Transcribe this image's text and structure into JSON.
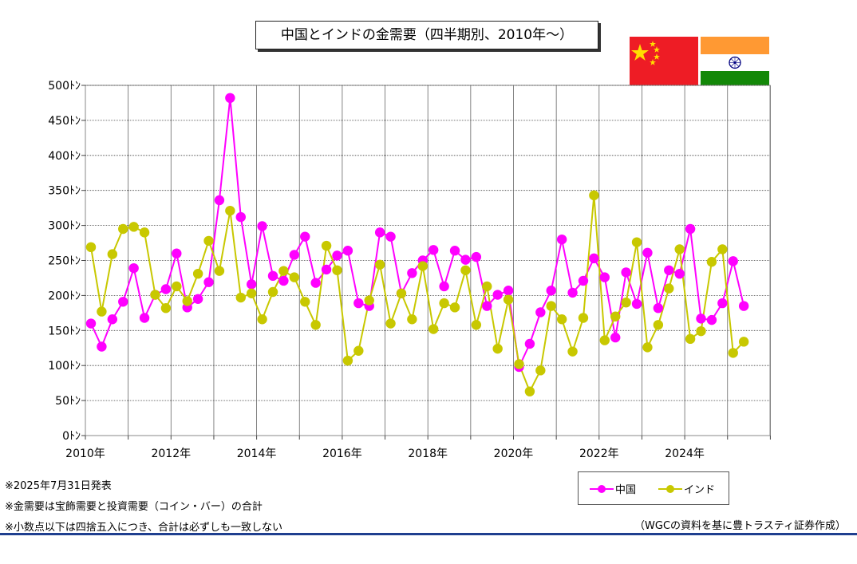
{
  "title": "中国とインドの金需要（四半期別、2010年〜）",
  "notes": [
    "※2025年7月31日発表",
    "※金需要は宝飾需要と投資需要（コイン・バー）の合計",
    "※小数点以下は四捨五入につき、合計は必ずしも一致しない"
  ],
  "source": "（WGCの資料を基に豊トラスティ証券作成）",
  "colors": {
    "china": "#ff00ff",
    "india": "#c8c800",
    "rule": "#1f3f8f"
  },
  "icons": {
    "china_flag": "china-flag-icon",
    "india_flag": "india-flag-icon"
  },
  "chart_data": {
    "type": "line",
    "ylim": [
      0,
      500
    ],
    "y_ticks": [
      "0ﾄﾝ",
      "50ﾄﾝ",
      "100ﾄﾝ",
      "150ﾄﾝ",
      "200ﾄﾝ",
      "250ﾄﾝ",
      "300ﾄﾝ",
      "350ﾄﾝ",
      "400ﾄﾝ",
      "450ﾄﾝ",
      "500ﾄﾝ"
    ],
    "x_ticks": [
      "2010年",
      "2012年",
      "2014年",
      "2016年",
      "2018年",
      "2020年",
      "2022年",
      "2024年"
    ],
    "x": [
      "2010Q1",
      "2010Q2",
      "2010Q3",
      "2010Q4",
      "2011Q1",
      "2011Q2",
      "2011Q3",
      "2011Q4",
      "2012Q1",
      "2012Q2",
      "2012Q3",
      "2012Q4",
      "2013Q1",
      "2013Q2",
      "2013Q3",
      "2013Q4",
      "2014Q1",
      "2014Q2",
      "2014Q3",
      "2014Q4",
      "2015Q1",
      "2015Q2",
      "2015Q3",
      "2015Q4",
      "2016Q1",
      "2016Q2",
      "2016Q3",
      "2016Q4",
      "2017Q1",
      "2017Q2",
      "2017Q3",
      "2017Q4",
      "2018Q1",
      "2018Q2",
      "2018Q3",
      "2018Q4",
      "2019Q1",
      "2019Q2",
      "2019Q3",
      "2019Q4",
      "2020Q1",
      "2020Q2",
      "2020Q3",
      "2020Q4",
      "2021Q1",
      "2021Q2",
      "2021Q3",
      "2021Q4",
      "2022Q1",
      "2022Q2",
      "2022Q3",
      "2022Q4",
      "2023Q1",
      "2023Q2",
      "2023Q3",
      "2023Q4",
      "2024Q1",
      "2024Q2",
      "2024Q3",
      "2024Q4",
      "2025Q1",
      "2025Q2"
    ],
    "grid": true,
    "legend": "bottom-right",
    "series": [
      {
        "name": "中国",
        "values": [
          160,
          127,
          166,
          191,
          239,
          168,
          201,
          209,
          260,
          183,
          195,
          219,
          336,
          482,
          312,
          216,
          299,
          228,
          221,
          258,
          284,
          218,
          237,
          257,
          264,
          189,
          185,
          290,
          284,
          203,
          232,
          250,
          265,
          213,
          264,
          251,
          255,
          185,
          201,
          207,
          98,
          131,
          176,
          207,
          280,
          204,
          221,
          253,
          226,
          140,
          233,
          188,
          261,
          182,
          236,
          231,
          295,
          167,
          165,
          189,
          249,
          185
        ]
      },
      {
        "name": "インド",
        "values": [
          269,
          177,
          259,
          295,
          298,
          290,
          201,
          182,
          213,
          192,
          231,
          278,
          235,
          321,
          197,
          203,
          166,
          205,
          235,
          226,
          191,
          158,
          271,
          236,
          107,
          121,
          193,
          244,
          160,
          203,
          166,
          242,
          152,
          189,
          183,
          236,
          158,
          213,
          124,
          194,
          102,
          63,
          93,
          185,
          166,
          120,
          168,
          343,
          136,
          170,
          190,
          276,
          126,
          158,
          210,
          266,
          138,
          149,
          248,
          266,
          118,
          134
        ]
      }
    ]
  }
}
